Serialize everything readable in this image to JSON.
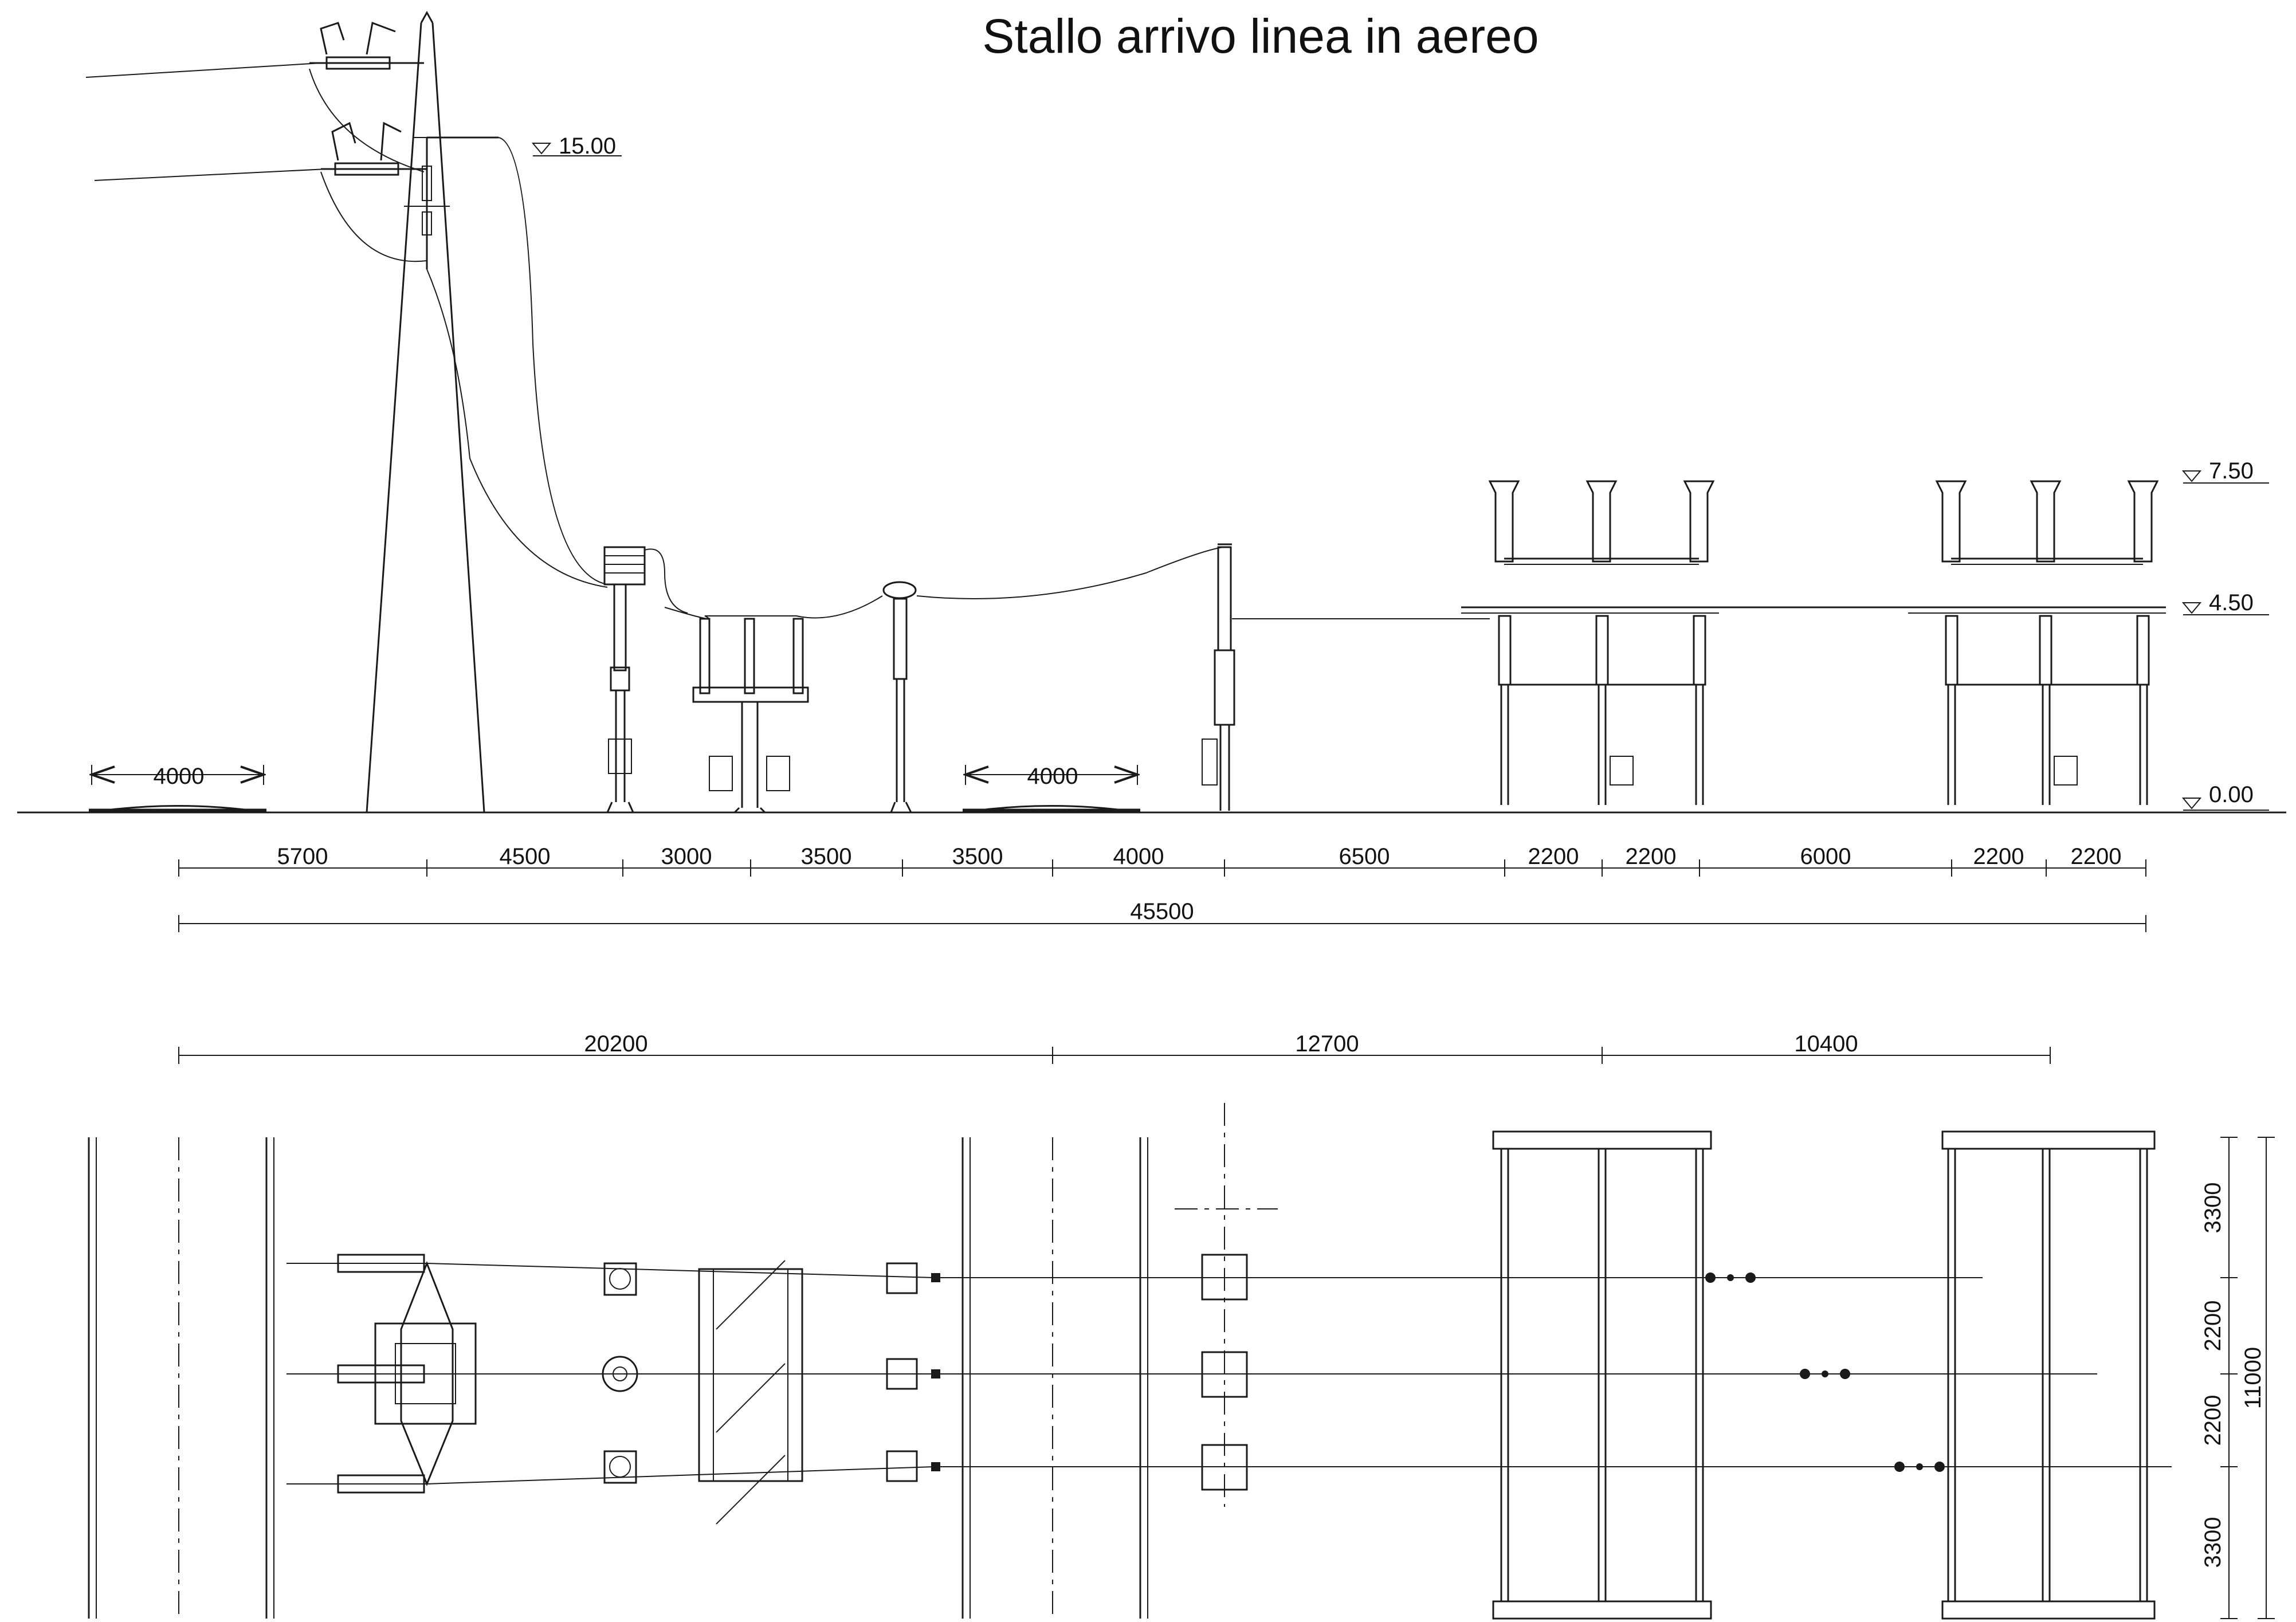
{
  "title": "Stallo arrivo linea in aereo",
  "levels": [
    "15.00",
    "7.50",
    "4.50",
    "0.00"
  ],
  "road_widths": [
    "4000",
    "4000"
  ],
  "elevation_dims": [
    "5700",
    "4500",
    "3000",
    "3500",
    "3500",
    "4000",
    "6500",
    "2200",
    "2200",
    "6000",
    "2200",
    "2200"
  ],
  "elevation_total": "45500",
  "plan_dims_top": [
    "20200",
    "12700",
    "10400"
  ],
  "plan_dims_side": [
    "3300",
    "2200",
    "2200",
    "3300"
  ],
  "plan_total_side": "11000",
  "colors": {
    "ink": "#1a1a1a",
    "background": "#ffffff"
  }
}
